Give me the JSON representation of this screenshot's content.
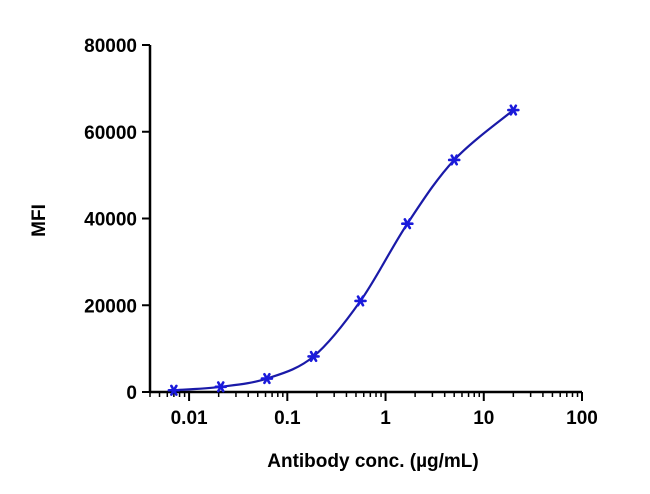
{
  "chart_data": {
    "type": "scatter",
    "xlabel": "Antibody conc. (µg/mL)",
    "ylabel": "MFI",
    "x_scale": "log",
    "xlim": [
      0.004,
      100
    ],
    "ylim": [
      0,
      80000
    ],
    "x_ticks": [
      {
        "value": 0.01,
        "label": "0.01"
      },
      {
        "value": 0.1,
        "label": "0.1"
      },
      {
        "value": 1,
        "label": "1"
      },
      {
        "value": 10,
        "label": "10"
      },
      {
        "value": 100,
        "label": "100"
      }
    ],
    "y_ticks": [
      {
        "value": 0,
        "label": "0"
      },
      {
        "value": 20000,
        "label": "20000"
      },
      {
        "value": 40000,
        "label": "40000"
      },
      {
        "value": 60000,
        "label": "60000"
      },
      {
        "value": 80000,
        "label": "80000"
      }
    ],
    "grid": false,
    "legend": "none",
    "series": [
      {
        "x": [
          0.007,
          0.021,
          0.062,
          0.185,
          0.556,
          1.667,
          5,
          20
        ],
        "y": [
          400,
          1200,
          3100,
          8200,
          21000,
          38800,
          53500,
          65000
        ],
        "fit_curve": true,
        "color": "#1a1adb",
        "curve_color": "#1a1aa8",
        "marker": "asterisk"
      }
    ]
  }
}
